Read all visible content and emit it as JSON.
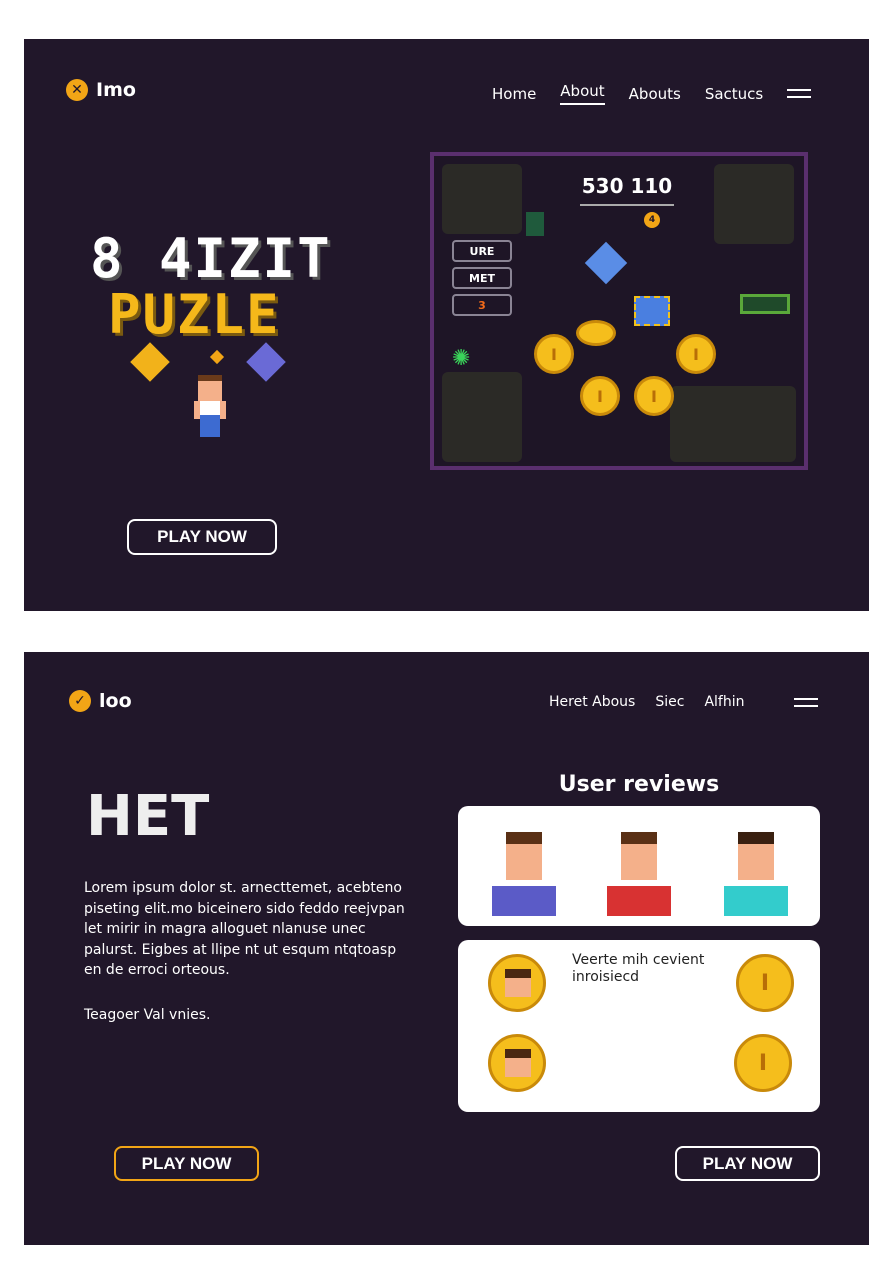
{
  "hero": {
    "logo_text": "Imo",
    "nav": [
      "Home",
      "About",
      "Abouts",
      "Sactucs"
    ],
    "active_nav": "About",
    "title_line1": "8 4IZIT",
    "title_line2": "PUZLE",
    "play_label": "PLAY NOW",
    "game": {
      "score": "530 110",
      "side_buttons": [
        "URE",
        "MET",
        "3"
      ],
      "coin_glyph": "I",
      "badge": "4"
    }
  },
  "second": {
    "logo_text": "loo",
    "nav": [
      "Heret Abous",
      "Siec",
      "Alfhin"
    ],
    "heading": "HET",
    "body": "Lorem ipsum dolor st. arnecttemet, acebteno piseting elit.mo biceinero sido feddo reejvpan let mirir in magra alloguet nlanuse unec palurst. Eigbes at llipe nt ut esqum ntqtoasp en de erroci orteous.",
    "footer_text": "Teagoer Val vnies.",
    "reviews_title": "User reviews",
    "review_text": "Veerte mih cevient inroisiecd",
    "play_label_left": "PLAY NOW",
    "play_label_right": "PLAY NOW",
    "avatar_shirts": [
      "#5b5bc7",
      "#d83232",
      "#33cccc"
    ]
  },
  "colors": {
    "background": "#21172a",
    "accent": "#f2a516",
    "puzzle_yellow": "#f5be1c",
    "frame": "#5a2f6e"
  }
}
